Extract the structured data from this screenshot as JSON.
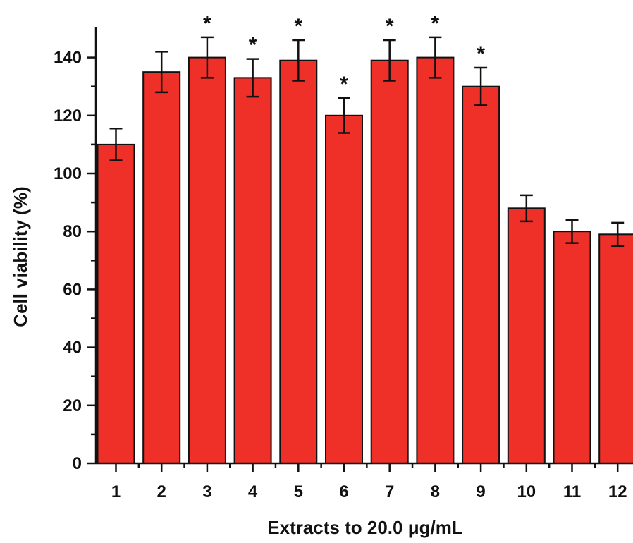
{
  "chart_data": {
    "type": "bar",
    "categories": [
      "1",
      "2",
      "3",
      "4",
      "5",
      "6",
      "7",
      "8",
      "9",
      "10",
      "11",
      "12"
    ],
    "values": [
      110,
      135,
      140,
      133,
      139,
      120,
      139,
      140,
      130,
      88,
      80,
      79
    ],
    "errors": [
      5.5,
      7,
      7,
      6.5,
      7,
      6,
      7,
      7,
      6.5,
      4.5,
      4,
      4
    ],
    "significant": [
      false,
      false,
      true,
      true,
      true,
      true,
      true,
      true,
      true,
      false,
      false,
      false
    ],
    "significance_marker": "*",
    "xlabel": "Extracts to 20.0 μg/mL",
    "ylabel": "Cell viability (%)",
    "ylim": [
      0,
      150
    ],
    "yticks": [
      0,
      20,
      40,
      60,
      80,
      100,
      120,
      140
    ],
    "bar_color": "#ee3029",
    "grid": false
  }
}
